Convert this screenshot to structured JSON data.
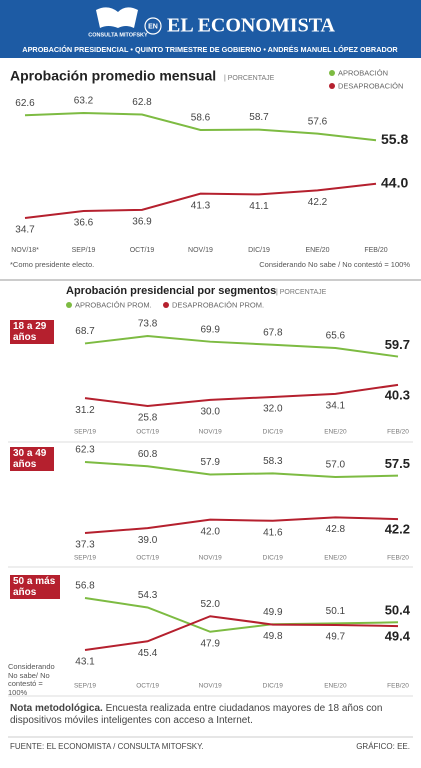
{
  "header": {
    "logo": "CONSULTA MITOFSKY",
    "en": "EN",
    "title": "EL ECONOMISTA",
    "subtitle": "APROBACIÓN PRESIDENCIAL • QUINTO TRIMESTRE DE GOBIERNO • ANDRÉS MANUEL LÓPEZ OBRADOR"
  },
  "chart_data": [
    {
      "type": "line",
      "title": "Aprobación promedio mensual",
      "unit": "| PORCENTAJE",
      "categories": [
        "NOV/18*",
        "SEP/19",
        "OCT/19",
        "NOV/19",
        "DIC/19",
        "ENE/20",
        "FEB/20"
      ],
      "series": [
        {
          "name": "APROBACIÓN",
          "color": "#7dbb42",
          "values": [
            62.6,
            63.2,
            62.8,
            58.6,
            58.7,
            57.6,
            55.8
          ]
        },
        {
          "name": "DESAPROBACIÓN",
          "color": "#b5202e",
          "values": [
            34.7,
            36.6,
            36.9,
            41.3,
            41.1,
            42.2,
            44.0
          ],
          "value_labels": [
            "34.7",
            "36.6",
            "36.9",
            "41.3",
            "41.1",
            "42.2",
            "44.0"
          ]
        }
      ],
      "notes": [
        "*Como presidente electo.",
        "Considerando No sabe / No contestó = 100%"
      ]
    },
    {
      "type": "line",
      "title": "Aprobación presidencial por segmentos",
      "unit": "| PORCENTAJE",
      "categories": [
        "SEP/19",
        "OCT/19",
        "NOV/19",
        "DIC/19",
        "ENE/20",
        "FEB/20"
      ],
      "series": [
        {
          "name": "APROBACIÓN PROM.",
          "color": "#7dbb42"
        },
        {
          "name": "DESAPROBACIÓN PROM.",
          "color": "#b5202e"
        }
      ],
      "panels": [
        {
          "label": "18 a 29 años",
          "series": [
            {
              "values": [
                68.7,
                73.8,
                69.9,
                67.8,
                65.6,
                59.7
              ]
            },
            {
              "values": [
                31.2,
                25.8,
                30.0,
                32.0,
                34.1,
                40.3
              ],
              "value_labels": [
                "31.2",
                "25.8",
                "30.0",
                "32.0",
                "34.1",
                "40.3"
              ]
            }
          ]
        },
        {
          "label": "30 a 49 años",
          "series": [
            {
              "values": [
                62.3,
                60.8,
                57.9,
                58.3,
                57.0,
                57.5
              ],
              "value_labels": [
                "62.3",
                "60.8",
                "57.9",
                "58.3",
                "57.0",
                "57.5"
              ]
            },
            {
              "values": [
                37.3,
                39.0,
                42.0,
                41.6,
                42.8,
                42.2
              ],
              "value_labels": [
                "37.3",
                "39.0",
                "42.0",
                "41.6",
                "42.8",
                "42.2"
              ]
            }
          ]
        },
        {
          "label": "50 a más años",
          "series": [
            {
              "values": [
                56.8,
                54.3,
                47.9,
                49.9,
                50.1,
                50.4
              ]
            },
            {
              "values": [
                43.1,
                45.4,
                52.0,
                49.8,
                49.7,
                49.4
              ],
              "value_labels": [
                "43.1",
                "45.4",
                "52.0",
                "49.8",
                "49.7",
                "49.4"
              ]
            }
          ]
        }
      ],
      "note": "Considerando No sabe/ No contestó = 100%"
    }
  ],
  "footer": {
    "note_title": "Nota metodológica.",
    "note_text": "Encuesta realizada entre ciudadanos mayores de 18 años con dispositivos móviles inteligentes con acceso a Internet.",
    "source": "FUENTE: EL ECONOMISTA / CONSULTA MITOFSKY.",
    "credit": "GRÁFICO: EE."
  }
}
